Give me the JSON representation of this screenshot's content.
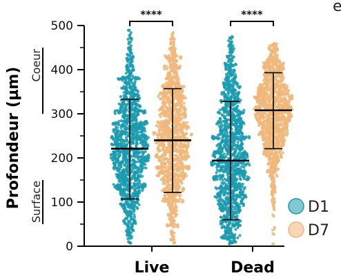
{
  "panel_letter": "e",
  "colors": {
    "D1": "#1a9bb0",
    "D7": "#f0b77a",
    "axis": "#000000"
  },
  "chart_data": {
    "type": "scatter",
    "subtype": "swarm-with-mean-sd",
    "ylabel": "Profondeur (µm)",
    "ylim": [
      0,
      500
    ],
    "yticks": [
      0,
      100,
      200,
      300,
      400,
      500
    ],
    "region_labels": [
      {
        "text": "Coeur",
        "range": [
          300,
          450
        ]
      },
      {
        "text": "Surface",
        "range": [
          50,
          150
        ]
      }
    ],
    "categories": [
      "Live",
      "Dead"
    ],
    "legend": [
      "D1",
      "D7"
    ],
    "series": [
      {
        "name": "D1",
        "category": "Live",
        "mean": 221,
        "sd_low": 107,
        "sd_high": 333,
        "min": 5,
        "max": 490
      },
      {
        "name": "D7",
        "category": "Live",
        "mean": 240,
        "sd_low": 122,
        "sd_high": 357,
        "min": 3,
        "max": 485
      },
      {
        "name": "D1",
        "category": "Dead",
        "mean": 194,
        "sd_low": 60,
        "sd_high": 328,
        "min": 5,
        "max": 480
      },
      {
        "name": "D7",
        "category": "Dead",
        "mean": 308,
        "sd_low": 221,
        "sd_high": 393,
        "min": 5,
        "max": 460
      }
    ],
    "significance": [
      {
        "category": "Live",
        "label": "****"
      },
      {
        "category": "Dead",
        "label": "****"
      }
    ]
  }
}
